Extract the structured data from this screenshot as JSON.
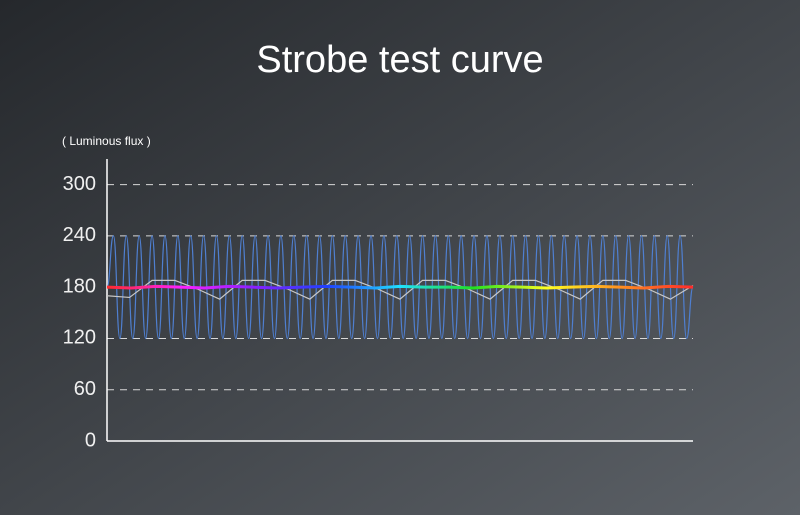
{
  "chart_data": {
    "type": "line",
    "title": "Strobe test curve",
    "y_label": "( Luminous flux )",
    "ylim": [
      0,
      330
    ],
    "yticks": [
      0,
      60,
      120,
      180,
      240,
      300
    ],
    "grid": true,
    "series": [
      {
        "color": "#4f7fd0",
        "smooth": true,
        "values": [
          180,
          240,
          120,
          240,
          120,
          240,
          120,
          240,
          120,
          240,
          120,
          240,
          120,
          240,
          120,
          240,
          120,
          240,
          120,
          240,
          120,
          240,
          120,
          240,
          120,
          240,
          120,
          240,
          120,
          240,
          120,
          240,
          120,
          240,
          120,
          240,
          120,
          240,
          120,
          240,
          120,
          240,
          120,
          240,
          120,
          240,
          120,
          240,
          120,
          240,
          120,
          240,
          120,
          240,
          120,
          240,
          120,
          240,
          120,
          240,
          120,
          240,
          120,
          240,
          120,
          240,
          120,
          240,
          120,
          240,
          120,
          240,
          120,
          240,
          120,
          240,
          120,
          240,
          120,
          240,
          120,
          240,
          120,
          240,
          120,
          240,
          120,
          240,
          120,
          240,
          120,
          180
        ]
      },
      {
        "color": "#c8c8c8",
        "values": [
          170,
          168,
          188,
          188,
          178,
          166,
          188,
          188,
          178,
          166,
          188,
          188,
          178,
          166,
          188,
          188,
          178,
          166,
          188,
          188,
          178,
          166,
          188,
          188,
          178,
          166,
          182
        ]
      },
      {
        "colors": [
          "#ff2a2a",
          "#ff20ff",
          "#8a20ff",
          "#2040ff",
          "#20e0ff",
          "#20e020",
          "#ffff20",
          "#ff9020",
          "#ff2a2a"
        ],
        "width": 3,
        "values": [
          180,
          179,
          181,
          180,
          179,
          181,
          180,
          179,
          180,
          181,
          180,
          179,
          181,
          180,
          180,
          179,
          181,
          180,
          179,
          180,
          181,
          180,
          179,
          181,
          180
        ]
      }
    ]
  }
}
